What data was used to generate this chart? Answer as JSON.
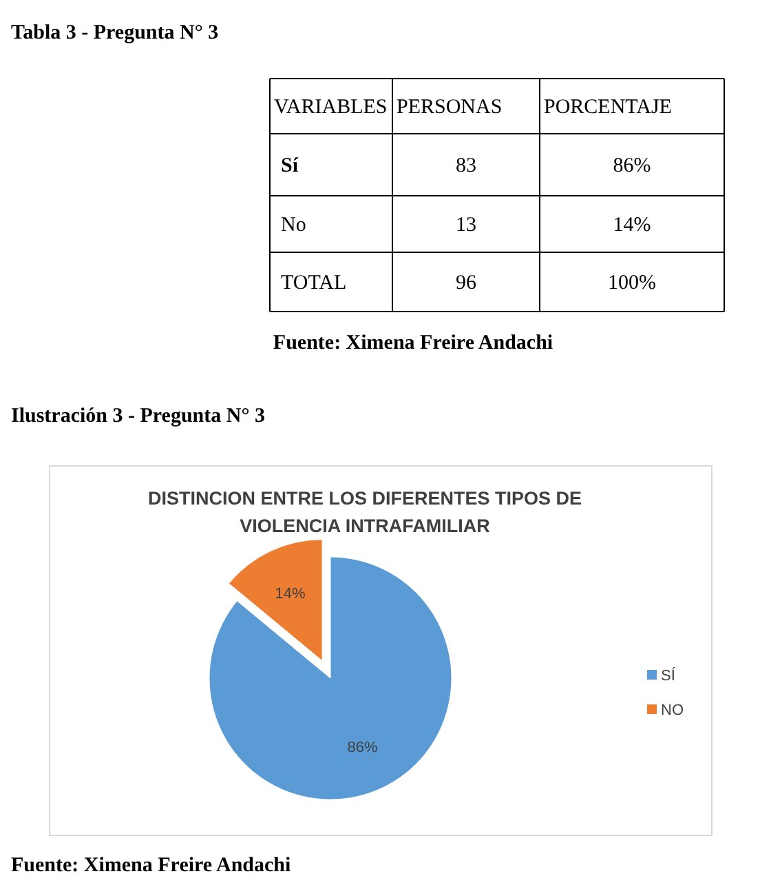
{
  "chart_data": [
    {
      "type": "other",
      "title": "Tabla 3 - Pregunta N° 3",
      "annotations": [
        "VARIABLES",
        "PERSONAS",
        "PORCENTAJE",
        "Sí",
        "83",
        "86%",
        "No",
        "13",
        "14%",
        "TOTAL",
        "96",
        "100%",
        "Fuente: Ximena Freire Andachi"
      ]
    },
    {
      "type": "pie",
      "title": "DISTINCION ENTRE LOS DIFERENTES TIPOS DE VIOLENCIA INTRAFAMILIAR",
      "categories": [
        "SÍ",
        "NO"
      ],
      "values": [
        86,
        14
      ],
      "colors": [
        "#5b9bd5",
        "#ed7d31"
      ],
      "value_labels": [
        "86%",
        "14%"
      ],
      "legend": "right",
      "annotations": [
        "Ilustración 3 - Pregunta N° 3",
        "Fuente: Ximena Freire Andachi"
      ]
    }
  ]
}
